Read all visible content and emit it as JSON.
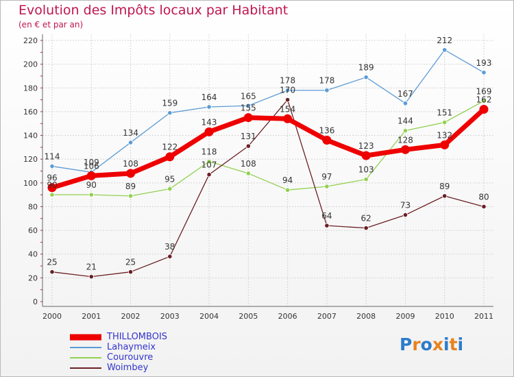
{
  "header": {
    "title": "Evolution des Impôts locaux par Habitant",
    "subtitle": "(en € et par an)"
  },
  "logo": {
    "text": "Proxiti",
    "colors": [
      "#2b7bcc",
      "#e8821c",
      "#2b7bcc",
      "#e8821c",
      "#2b7bcc",
      "#e8821c",
      "#2b7bcc"
    ]
  },
  "chart_data": {
    "type": "line",
    "title": "Evolution des Impôts locaux par Habitant",
    "subtitle": "(en € et par an)",
    "x": [
      "2000",
      "2001",
      "2002",
      "2003",
      "2004",
      "2005",
      "2006",
      "2007",
      "2008",
      "2009",
      "2010",
      "2011"
    ],
    "ylim": [
      0,
      220
    ],
    "yticks": [
      0,
      20,
      40,
      60,
      80,
      100,
      120,
      140,
      160,
      180,
      200,
      220
    ],
    "grid": true,
    "legend_position": "bottom-left",
    "series": [
      {
        "name": "Lahaymeix",
        "color": "#5b9bd5",
        "values": [
          114,
          109,
          134,
          159,
          164,
          165,
          178,
          178,
          189,
          167,
          212,
          193
        ],
        "labels": [
          "114",
          "109",
          "134",
          "159",
          "164",
          "165",
          "178",
          "178",
          "189",
          "167",
          "212",
          "193"
        ]
      },
      {
        "name": "Courouvre",
        "color": "#92d050",
        "values": [
          90,
          90,
          89,
          95,
          118,
          108,
          94,
          97,
          103,
          144,
          151,
          169
        ],
        "labels": [
          "90",
          "90",
          "89",
          "95",
          "118",
          "108",
          "94",
          "97",
          "103",
          "144",
          "151",
          "169"
        ]
      },
      {
        "name": "Woimbey",
        "color": "#6b1f24",
        "values": [
          25,
          21,
          25,
          38,
          107,
          131,
          170,
          64,
          62,
          73,
          89,
          80
        ],
        "labels": [
          "25",
          "21",
          "25",
          "38",
          "107",
          "131",
          "170",
          "64",
          "62",
          "73",
          "89",
          "80"
        ]
      },
      {
        "name": "THILLOMBOIS",
        "color": "#ee0000",
        "values": [
          96,
          106,
          108,
          122,
          143,
          155,
          154,
          136,
          123,
          128,
          132,
          162
        ],
        "labels": [
          "96",
          "106",
          "108",
          "122",
          "143",
          "155",
          "154",
          "136",
          "123",
          "128",
          "132",
          "162"
        ]
      }
    ],
    "legend": [
      "THILLOMBOIS",
      "Lahaymeix",
      "Courouvre",
      "Woimbey"
    ]
  }
}
